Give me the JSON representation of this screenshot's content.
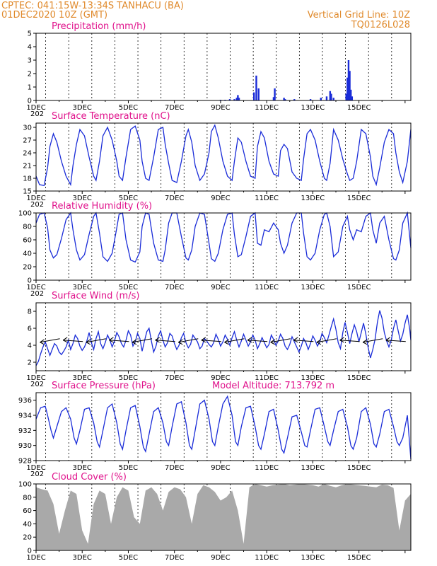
{
  "header": {
    "line1_left": "CPTEC:   041:15W-13:34S   TANHACU (BA)",
    "line2_left": "01DEC2020 10Z (GMT)",
    "line2_right": "Vertical Grid Line: 10Z",
    "line3_right": "TQ0126L028"
  },
  "colors": {
    "header": "#e08a2c",
    "title": "#e0138c",
    "series": "#1a2cd8",
    "cloud": "#a9a9a9"
  },
  "x_labels": [
    "1DEC",
    "3DEC",
    "5DEC",
    "7DEC",
    "9DEC",
    "11DEC",
    "13DEC",
    "15DEC"
  ],
  "x_label_extra": "202",
  "chart_data": [
    {
      "id": "precip",
      "type": "bar",
      "title": "Precipitation (mm/h)",
      "ylim": [
        0,
        5
      ],
      "yticks": [
        "0",
        "1",
        "2",
        "3",
        "4",
        "5"
      ],
      "yticks_v": [
        0,
        1,
        2,
        3,
        4,
        5
      ],
      "x_unit": "days since 01DEC 00Z",
      "x": [
        8.0,
        8.2,
        8.4,
        8.6,
        8.7,
        8.75,
        8.8,
        9.45,
        9.55,
        9.65,
        10.3,
        10.35,
        10.75,
        10.8,
        11.2,
        11.9,
        12.35,
        12.6,
        12.75,
        12.8,
        12.9,
        13.45,
        13.5,
        13.55,
        13.6,
        13.65,
        13.7
      ],
      "values": [
        0.05,
        0.05,
        0.1,
        0.1,
        0.2,
        0.4,
        0.2,
        0.6,
        1.85,
        0.9,
        0.25,
        0.9,
        0.2,
        0.1,
        0.1,
        0.1,
        0.2,
        0.3,
        0.7,
        0.5,
        0.2,
        0.5,
        1.7,
        3.0,
        2.2,
        0.8,
        0.3
      ]
    },
    {
      "id": "temp",
      "type": "line",
      "title": "Surface Temperature (nC)",
      "ylim": [
        15,
        31
      ],
      "yticks": [
        "15",
        "18",
        "21",
        "24",
        "27",
        "30"
      ],
      "yticks_v": [
        15,
        18,
        21,
        24,
        27,
        30
      ],
      "x_unit": "days since 01DEC 00Z",
      "x": [
        0.0,
        0.15,
        0.35,
        0.5,
        0.6,
        0.75,
        0.9,
        1.1,
        1.3,
        1.5,
        1.6,
        1.75,
        1.9,
        2.1,
        2.3,
        2.5,
        2.6,
        2.75,
        2.9,
        3.1,
        3.3,
        3.5,
        3.6,
        3.75,
        3.9,
        4.1,
        4.3,
        4.5,
        4.6,
        4.75,
        4.9,
        5.1,
        5.3,
        5.5,
        5.6,
        5.75,
        5.9,
        6.1,
        6.3,
        6.5,
        6.6,
        6.75,
        6.9,
        7.1,
        7.3,
        7.5,
        7.6,
        7.75,
        7.9,
        8.1,
        8.3,
        8.5,
        8.6,
        8.75,
        8.9,
        9.1,
        9.3,
        9.5,
        9.6,
        9.75,
        9.9,
        10.1,
        10.3,
        10.5,
        10.6,
        10.75,
        10.9,
        11.1,
        11.3,
        11.5,
        11.6,
        11.75,
        11.9,
        12.1,
        12.3,
        12.5,
        12.6,
        12.75,
        12.9,
        13.1,
        13.3,
        13.5,
        13.6,
        13.75,
        13.9,
        14.1,
        14.3,
        14.5,
        14.6,
        14.75,
        14.9,
        15.1,
        15.3,
        15.5,
        15.6,
        15.75,
        15.9,
        16.1,
        16.25
      ],
      "values": [
        18.5,
        16.5,
        16.3,
        20.5,
        25.5,
        28.5,
        26.5,
        22,
        18.5,
        16.5,
        21,
        26,
        29.5,
        28,
        23,
        18.5,
        17.5,
        22,
        28,
        30,
        27,
        22,
        18.5,
        17.5,
        23,
        29.5,
        30.3,
        27,
        22,
        18,
        17.5,
        23,
        29.5,
        30,
        26,
        21.5,
        17.5,
        17,
        22,
        28,
        29.5,
        26.5,
        21,
        17.5,
        19,
        24,
        29,
        30.5,
        27.5,
        22,
        18.5,
        17.5,
        22,
        27.5,
        26.5,
        22,
        18.5,
        18,
        25.5,
        29,
        27.5,
        22,
        19,
        18.5,
        24.5,
        26,
        25,
        19.5,
        18,
        17.5,
        22.5,
        28.5,
        29.5,
        27,
        22,
        18,
        17.5,
        21.5,
        29.5,
        27,
        22.5,
        19,
        17.5,
        18,
        22,
        29.5,
        28.5,
        23,
        18.5,
        16.5,
        20.5,
        26.5,
        29.5,
        28.5,
        24,
        19.5,
        17,
        22,
        29.5
      ]
    },
    {
      "id": "rh",
      "type": "line",
      "title": "Relative Humidity (%)",
      "ylim": [
        0,
        100
      ],
      "yticks": [
        "0",
        "20",
        "40",
        "60",
        "80",
        "100"
      ],
      "yticks_v": [
        0,
        20,
        40,
        60,
        80,
        100
      ],
      "x_unit": "days since 01DEC 00Z",
      "x": [
        0.0,
        0.15,
        0.35,
        0.5,
        0.6,
        0.75,
        0.9,
        1.1,
        1.3,
        1.5,
        1.6,
        1.75,
        1.9,
        2.1,
        2.3,
        2.5,
        2.6,
        2.75,
        2.9,
        3.1,
        3.3,
        3.5,
        3.6,
        3.75,
        3.9,
        4.1,
        4.3,
        4.5,
        4.6,
        4.75,
        4.9,
        5.1,
        5.3,
        5.5,
        5.6,
        5.75,
        5.9,
        6.1,
        6.3,
        6.5,
        6.6,
        6.75,
        6.9,
        7.1,
        7.3,
        7.5,
        7.6,
        7.75,
        7.9,
        8.1,
        8.3,
        8.5,
        8.6,
        8.75,
        8.9,
        9.1,
        9.3,
        9.5,
        9.6,
        9.75,
        9.9,
        10.1,
        10.3,
        10.5,
        10.6,
        10.75,
        10.9,
        11.1,
        11.3,
        11.5,
        11.6,
        11.75,
        11.9,
        12.1,
        12.3,
        12.5,
        12.6,
        12.75,
        12.9,
        13.1,
        13.3,
        13.5,
        13.6,
        13.75,
        13.9,
        14.1,
        14.3,
        14.5,
        14.6,
        14.75,
        14.9,
        15.1,
        15.3,
        15.5,
        15.6,
        15.75,
        15.9,
        16.1,
        16.25
      ],
      "values": [
        85,
        98,
        100,
        78,
        45,
        33,
        38,
        62,
        90,
        100,
        75,
        45,
        30,
        38,
        68,
        95,
        100,
        70,
        35,
        28,
        40,
        78,
        98,
        100,
        60,
        30,
        27,
        42,
        80,
        100,
        98,
        55,
        30,
        28,
        45,
        85,
        100,
        100,
        65,
        33,
        30,
        45,
        80,
        100,
        98,
        55,
        32,
        28,
        40,
        75,
        98,
        100,
        68,
        35,
        38,
        65,
        95,
        100,
        55,
        52,
        75,
        72,
        85,
        75,
        55,
        40,
        52,
        85,
        100,
        100,
        70,
        35,
        30,
        40,
        75,
        98,
        100,
        80,
        35,
        42,
        80,
        95,
        75,
        60,
        75,
        72,
        95,
        100,
        75,
        55,
        85,
        95,
        60,
        32,
        30,
        45,
        85,
        100,
        48
      ]
    },
    {
      "id": "wind",
      "type": "line",
      "title": "Surface Wind (m/s)",
      "ylim": [
        1,
        9
      ],
      "yticks": [
        "2",
        "4",
        "6",
        "8"
      ],
      "yticks_v": [
        2,
        4,
        6,
        8
      ],
      "x_unit": "days since 01DEC 00Z",
      "x": [
        0.0,
        0.1,
        0.2,
        0.3,
        0.4,
        0.5,
        0.6,
        0.7,
        0.8,
        0.9,
        1.0,
        1.1,
        1.2,
        1.3,
        1.4,
        1.5,
        1.6,
        1.7,
        1.8,
        1.9,
        2.0,
        2.1,
        2.2,
        2.3,
        2.4,
        2.5,
        2.6,
        2.7,
        2.8,
        2.9,
        3.0,
        3.1,
        3.2,
        3.3,
        3.4,
        3.5,
        3.6,
        3.7,
        3.8,
        3.9,
        4.0,
        4.1,
        4.2,
        4.3,
        4.4,
        4.5,
        4.6,
        4.7,
        4.8,
        4.9,
        5.0,
        5.1,
        5.2,
        5.3,
        5.4,
        5.5,
        5.6,
        5.7,
        5.8,
        5.9,
        6.0,
        6.1,
        6.2,
        6.3,
        6.4,
        6.5,
        6.6,
        6.7,
        6.8,
        6.9,
        7.0,
        7.1,
        7.2,
        7.3,
        7.4,
        7.5,
        7.6,
        7.7,
        7.8,
        7.9,
        8.0,
        8.1,
        8.2,
        8.3,
        8.4,
        8.5,
        8.6,
        8.7,
        8.8,
        8.9,
        9.0,
        9.1,
        9.2,
        9.3,
        9.4,
        9.5,
        9.6,
        9.7,
        9.8,
        9.9,
        10.0,
        10.1,
        10.2,
        10.3,
        10.4,
        10.5,
        10.6,
        10.7,
        10.8,
        10.9,
        11.0,
        11.1,
        11.2,
        11.3,
        11.4,
        11.5,
        11.6,
        11.7,
        11.8,
        11.9,
        12.0,
        12.1,
        12.2,
        12.3,
        12.4,
        12.5,
        12.6,
        12.7,
        12.8,
        12.9,
        13.0,
        13.1,
        13.2,
        13.3,
        13.4,
        13.5,
        13.6,
        13.7,
        13.8,
        13.9,
        14.0,
        14.1,
        14.2,
        14.3,
        14.4,
        14.5,
        14.6,
        14.7,
        14.8,
        14.9,
        15.0,
        15.1,
        15.2,
        15.3,
        15.4,
        15.5,
        15.6,
        15.7,
        15.8,
        15.9,
        16.0,
        16.1,
        16.2,
        16.25
      ],
      "values": [
        1.6,
        2.1,
        3.0,
        3.8,
        4.4,
        3.6,
        2.8,
        3.5,
        4.2,
        3.9,
        3.2,
        2.9,
        3.3,
        3.8,
        4.6,
        3.5,
        4.2,
        5.2,
        4.8,
        3.9,
        3.4,
        3.8,
        4.5,
        5.5,
        4.3,
        3.5,
        4.8,
        5.6,
        4.2,
        3.6,
        4.3,
        5.2,
        4.6,
        3.8,
        4.5,
        5.5,
        5.0,
        4.2,
        3.8,
        4.6,
        5.7,
        5.2,
        3.9,
        4.4,
        5.4,
        4.8,
        3.3,
        4.5,
        5.6,
        6.0,
        4.5,
        3.2,
        3.9,
        5.1,
        5.7,
        4.6,
        3.8,
        4.3,
        5.4,
        5.1,
        4.2,
        3.5,
        4.0,
        4.9,
        5.4,
        4.3,
        3.7,
        4.1,
        5.2,
        4.8,
        4.4,
        3.6,
        3.9,
        4.8,
        4.5,
        4.1,
        3.8,
        4.3,
        5.3,
        4.7,
        3.9,
        4.4,
        5.2,
        4.7,
        4.0,
        4.9,
        5.6,
        4.6,
        3.8,
        4.5,
        5.3,
        4.6,
        3.9,
        4.4,
        5.2,
        4.6,
        3.6,
        4.2,
        4.9,
        4.3,
        3.7,
        4.1,
        5.2,
        4.7,
        4.0,
        4.5,
        5.3,
        4.8,
        3.9,
        3.5,
        4.1,
        5.0,
        4.4,
        3.8,
        3.2,
        3.9,
        4.8,
        4.3,
        3.5,
        4.2,
        5.1,
        4.6,
        3.9,
        4.4,
        5.4,
        4.9,
        4.3,
        5.2,
        6.2,
        7.1,
        5.9,
        4.3,
        3.6,
        5.5,
        6.7,
        5.5,
        4.2,
        5.4,
        6.4,
        5.6,
        4.4,
        5.5,
        6.6,
        5.3,
        3.7,
        2.5,
        3.5,
        4.7,
        6.7,
        8.1,
        7.2,
        5.5,
        4.5,
        3.8,
        4.6,
        6.0,
        7.0,
        5.7,
        4.5,
        5.3,
        6.6,
        7.6,
        5.9,
        4.6
      ]
    },
    {
      "id": "pressure",
      "type": "line",
      "title": "Surface Pressure (hPa)",
      "note": "Model Altitude: 713.792 m",
      "ylim": [
        928,
        937
      ],
      "yticks": [
        "928",
        "930",
        "932",
        "934",
        "936"
      ],
      "yticks_v": [
        928,
        930,
        932,
        934,
        936
      ],
      "x_unit": "days since 01DEC 00Z",
      "x": [
        0.0,
        0.2,
        0.4,
        0.5,
        0.65,
        0.75,
        0.9,
        1.1,
        1.3,
        1.5,
        1.65,
        1.75,
        1.9,
        2.1,
        2.3,
        2.5,
        2.65,
        2.75,
        2.9,
        3.1,
        3.3,
        3.5,
        3.65,
        3.75,
        3.9,
        4.1,
        4.3,
        4.5,
        4.65,
        4.75,
        4.9,
        5.1,
        5.3,
        5.5,
        5.65,
        5.75,
        5.9,
        6.1,
        6.3,
        6.5,
        6.65,
        6.75,
        6.9,
        7.1,
        7.3,
        7.5,
        7.65,
        7.75,
        7.9,
        8.1,
        8.3,
        8.5,
        8.65,
        8.75,
        8.9,
        9.1,
        9.3,
        9.5,
        9.65,
        9.75,
        9.9,
        10.1,
        10.3,
        10.5,
        10.65,
        10.75,
        10.9,
        11.1,
        11.3,
        11.5,
        11.65,
        11.75,
        11.9,
        12.1,
        12.3,
        12.5,
        12.65,
        12.75,
        12.9,
        13.1,
        13.3,
        13.5,
        13.65,
        13.75,
        13.9,
        14.1,
        14.3,
        14.5,
        14.65,
        14.75,
        14.9,
        15.1,
        15.3,
        15.5,
        15.65,
        15.75,
        15.9,
        16.1,
        16.25
      ],
      "values": [
        933.5,
        935.0,
        935.2,
        934.0,
        932.0,
        931.0,
        932.5,
        934.5,
        935.0,
        933.5,
        931.0,
        930.2,
        932.0,
        934.8,
        935.0,
        933.0,
        930.5,
        929.8,
        932.0,
        935.0,
        935.5,
        933.0,
        930.2,
        929.5,
        932.0,
        935.0,
        935.3,
        932.5,
        929.8,
        929.2,
        931.5,
        934.5,
        935.0,
        933.0,
        930.5,
        930.0,
        932.5,
        935.5,
        935.8,
        933.0,
        930.0,
        929.5,
        932.0,
        935.5,
        936.0,
        933.5,
        930.5,
        930.0,
        932.5,
        935.5,
        936.5,
        934.0,
        930.5,
        930.0,
        932.5,
        935.0,
        935.2,
        932.5,
        930.0,
        929.5,
        931.5,
        934.5,
        934.8,
        932.0,
        929.5,
        929.0,
        931.0,
        933.8,
        934.0,
        931.8,
        930.0,
        929.8,
        932.0,
        934.8,
        935.0,
        932.5,
        930.5,
        930.0,
        932.0,
        934.5,
        934.8,
        932.5,
        930.0,
        929.5,
        931.0,
        934.5,
        935.0,
        932.8,
        930.2,
        929.8,
        931.5,
        934.5,
        934.8,
        932.5,
        930.5,
        930.0,
        931.0,
        934.0,
        928.2
      ]
    },
    {
      "id": "cloud",
      "type": "area",
      "title": "Cloud Cover (%)",
      "ylim": [
        0,
        100
      ],
      "yticks": [
        "0",
        "20",
        "40",
        "60",
        "80",
        "100"
      ],
      "yticks_v": [
        0,
        20,
        40,
        60,
        80,
        100
      ],
      "x_unit": "days since 01DEC 00Z",
      "x": [
        0.0,
        0.25,
        0.5,
        0.75,
        1.0,
        1.25,
        1.5,
        1.75,
        2.0,
        2.25,
        2.5,
        2.75,
        3.0,
        3.25,
        3.5,
        3.75,
        4.0,
        4.25,
        4.5,
        4.75,
        5.0,
        5.25,
        5.5,
        5.75,
        6.0,
        6.25,
        6.5,
        6.75,
        7.0,
        7.25,
        7.5,
        7.75,
        8.0,
        8.25,
        8.5,
        8.75,
        9.0,
        9.25,
        9.5,
        9.75,
        10.0,
        10.25,
        10.5,
        10.75,
        11.0,
        11.25,
        11.5,
        11.75,
        12.0,
        12.25,
        12.5,
        12.75,
        13.0,
        13.25,
        13.5,
        13.75,
        14.0,
        14.25,
        14.5,
        14.75,
        15.0,
        15.25,
        15.5,
        15.75,
        16.0,
        16.25
      ],
      "values": [
        95,
        92,
        90,
        70,
        25,
        60,
        90,
        85,
        30,
        10,
        70,
        90,
        85,
        40,
        80,
        95,
        90,
        50,
        40,
        90,
        95,
        85,
        60,
        88,
        95,
        92,
        80,
        40,
        85,
        98,
        95,
        88,
        75,
        80,
        90,
        60,
        10,
        95,
        100,
        98,
        96,
        98,
        99,
        100,
        98,
        99,
        100,
        99,
        98,
        96,
        100,
        97,
        95,
        98,
        100,
        99,
        98,
        97,
        96,
        95,
        99,
        98,
        94,
        30,
        75,
        85
      ]
    }
  ]
}
